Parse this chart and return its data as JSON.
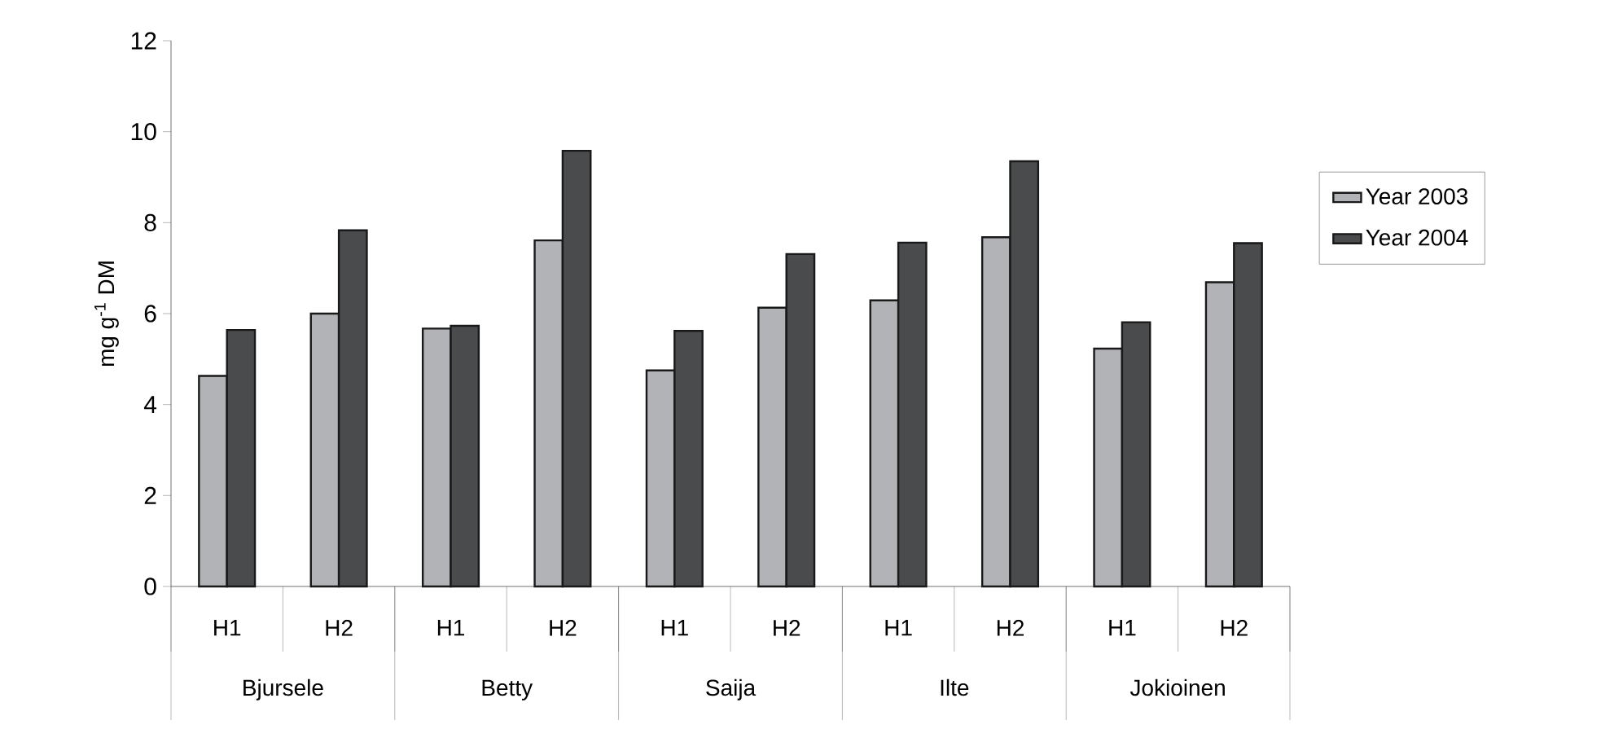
{
  "chart_data": {
    "type": "bar",
    "ylabel": "mg g$^{-1}$ DM",
    "categories": [
      "H1",
      "H2",
      "H1",
      "H2",
      "H1",
      "H2",
      "H1",
      "H2",
      "H1",
      "H2"
    ],
    "annotations": [
      "Bjursele",
      "Betty",
      "Saija",
      "Ilte",
      "Jokioinen"
    ],
    "series": [
      {
        "name": "Year 2003",
        "color": "#b2b3b6",
        "values": [
          4.63,
          6.0,
          5.67,
          7.61,
          4.75,
          6.13,
          6.29,
          7.68,
          5.23,
          6.69
        ]
      },
      {
        "name": "Year 2004",
        "color": "#4a4b4d",
        "values": [
          5.64,
          7.83,
          5.73,
          9.58,
          5.62,
          7.31,
          7.56,
          9.35,
          5.81,
          7.55
        ]
      }
    ],
    "ylim": [
      0,
      12
    ],
    "yticks": [
      0,
      2,
      4,
      6,
      8,
      10,
      12
    ],
    "grid": false,
    "legend": "right"
  }
}
